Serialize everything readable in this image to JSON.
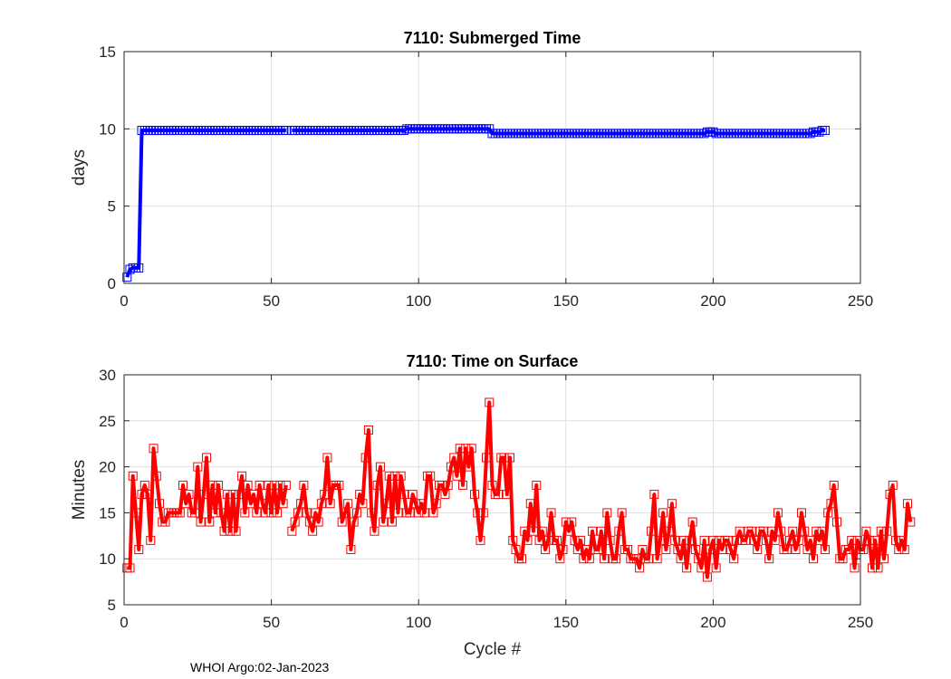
{
  "footer": "WHOI Argo:02-Jan-2023",
  "chart_data": [
    {
      "type": "line",
      "title": "7110: Submerged Time",
      "xlabel": "",
      "ylabel": "days",
      "xlim": [
        0,
        250
      ],
      "ylim": [
        0,
        15
      ],
      "xticks": [
        0,
        50,
        100,
        150,
        200,
        250
      ],
      "yticks": [
        0,
        5,
        10,
        15
      ],
      "grid": true,
      "color": "#0000ff",
      "marker": "square",
      "segments": [
        {
          "x_start": 1,
          "values": [
            0.4,
            0.9,
            1.0,
            1.0,
            1.0,
            9.9,
            9.9,
            9.9,
            9.9,
            9.9,
            9.9,
            9.9,
            9.9,
            9.9,
            9.9,
            9.9,
            9.9,
            9.9,
            9.9,
            9.9,
            9.9,
            9.9,
            9.9,
            9.9,
            9.9,
            9.9,
            9.9,
            9.9,
            9.9,
            9.9,
            9.9,
            9.9,
            9.9,
            9.9,
            9.9,
            9.9,
            9.9,
            9.9,
            9.9,
            9.9,
            9.9,
            9.9,
            9.9,
            9.9,
            9.9,
            9.9,
            9.9,
            9.9,
            9.9,
            9.9,
            9.9,
            9.9,
            9.9,
            9.9,
            9.9
          ]
        },
        {
          "x_start": 57,
          "values": [
            9.9,
            9.9,
            9.9,
            9.9,
            9.9,
            9.9,
            9.9,
            9.9,
            9.9,
            9.9,
            9.9,
            9.9,
            9.9,
            9.9,
            9.9,
            9.9,
            9.9,
            9.9,
            9.9,
            9.9,
            9.9,
            9.9,
            9.9,
            9.9,
            9.9,
            9.9,
            9.9,
            9.9,
            9.9,
            9.9,
            9.9,
            9.9,
            9.9,
            9.9,
            9.9,
            9.9,
            9.9,
            9.9,
            9.9,
            10.0,
            10.0,
            10.0,
            10.0,
            10.0,
            10.0,
            10.0,
            10.0,
            10.0,
            10.0,
            10.0,
            10.0,
            10.0,
            10.0,
            10.0,
            10.0,
            10.0,
            10.0,
            10.0,
            10.0,
            10.0,
            10.0,
            10.0,
            10.0,
            10.0,
            10.0,
            10.0,
            10.0,
            10.0,
            9.7,
            9.7,
            9.7,
            9.7,
            9.7,
            9.7,
            9.7,
            9.7,
            9.7,
            9.7,
            9.7,
            9.7,
            9.7,
            9.7,
            9.7,
            9.7,
            9.7,
            9.7,
            9.7,
            9.7,
            9.7,
            9.7,
            9.7,
            9.7,
            9.7,
            9.7,
            9.7,
            9.7,
            9.7,
            9.7,
            9.7,
            9.7,
            9.7,
            9.7,
            9.7,
            9.7,
            9.7,
            9.7,
            9.7,
            9.7,
            9.7,
            9.7,
            9.7,
            9.7,
            9.7,
            9.7,
            9.7,
            9.7,
            9.7,
            9.7,
            9.7,
            9.7,
            9.7,
            9.7,
            9.7,
            9.7,
            9.7,
            9.7,
            9.7,
            9.7,
            9.7,
            9.7,
            9.7,
            9.7,
            9.7,
            9.7,
            9.7,
            9.7,
            9.7,
            9.7,
            9.7,
            9.7,
            9.7,
            9.8,
            9.8,
            9.8,
            9.7,
            9.7,
            9.7,
            9.7,
            9.7,
            9.7,
            9.7,
            9.7,
            9.7,
            9.7,
            9.7,
            9.7,
            9.7,
            9.7,
            9.7,
            9.7,
            9.7,
            9.7,
            9.7,
            9.7,
            9.7,
            9.7,
            9.7,
            9.7,
            9.7,
            9.7,
            9.7,
            9.7,
            9.7,
            9.7,
            9.7,
            9.7,
            9.7,
            9.8,
            9.8,
            9.8,
            9.9,
            9.9
          ]
        }
      ]
    },
    {
      "type": "line",
      "title": "7110: Time on Surface",
      "xlabel": "Cycle #",
      "ylabel": "Minutes",
      "xlim": [
        0,
        250
      ],
      "ylim": [
        5,
        30
      ],
      "xticks": [
        0,
        50,
        100,
        150,
        200,
        250
      ],
      "yticks": [
        5,
        10,
        15,
        20,
        25,
        30
      ],
      "grid": true,
      "color": "#ff0000",
      "marker": "square",
      "segments": [
        {
          "x_start": 1,
          "values": [
            9,
            9,
            19,
            15,
            11,
            17,
            18,
            17,
            12,
            22,
            19,
            16,
            14,
            14,
            15,
            15,
            15,
            15,
            15,
            18,
            16,
            17,
            15,
            15,
            20,
            14,
            17,
            21,
            14,
            18,
            15,
            18,
            15,
            13,
            17,
            13,
            17,
            13,
            17,
            19,
            15,
            18,
            16,
            17,
            15,
            18,
            16,
            15,
            18,
            15,
            18,
            15,
            18,
            16,
            18
          ]
        },
        {
          "x_start": 57,
          "values": [
            13,
            14,
            15,
            16,
            18,
            15,
            14,
            13,
            15,
            14,
            16,
            17,
            21,
            16,
            18,
            18,
            18,
            14,
            15,
            16,
            11,
            14,
            15,
            17,
            16,
            21,
            24,
            15,
            13,
            18,
            20,
            14,
            16,
            19,
            14,
            19,
            15,
            19,
            17,
            15,
            15,
            17,
            16,
            15,
            16,
            15,
            19,
            19,
            15,
            16,
            18,
            18,
            17,
            18,
            20,
            21,
            19,
            22,
            18,
            22,
            20,
            22,
            17,
            15,
            12,
            15,
            21,
            27,
            18,
            17,
            17,
            21,
            21,
            17,
            21,
            12,
            11,
            10,
            10,
            13,
            12,
            16,
            13,
            18,
            12,
            13,
            11,
            12,
            15,
            12,
            12,
            10,
            11,
            14,
            13,
            14,
            12,
            11,
            12,
            10,
            11,
            10,
            13,
            11,
            11,
            13,
            10,
            15,
            12,
            10,
            10,
            13,
            15,
            11,
            11,
            10,
            10,
            10,
            9,
            11,
            10,
            10,
            13,
            17,
            10,
            12,
            15,
            11,
            13,
            16,
            12,
            11,
            10,
            12,
            9,
            12,
            14,
            11,
            10,
            9,
            12,
            8,
            11,
            12,
            9,
            12,
            11,
            12,
            12,
            11,
            10,
            12,
            13,
            12,
            12,
            13,
            13,
            12,
            11,
            13,
            13,
            12,
            10,
            13,
            12,
            15,
            13,
            11,
            11,
            12,
            13,
            11,
            12,
            15,
            13,
            11,
            12,
            10,
            13,
            12,
            13,
            11,
            15,
            16,
            18,
            14,
            10,
            10,
            11,
            11,
            12,
            9,
            12,
            11,
            11,
            13,
            12,
            9,
            12,
            9,
            13,
            10,
            13,
            17,
            18,
            12,
            11,
            12,
            11,
            16,
            14
          ]
        }
      ]
    }
  ]
}
